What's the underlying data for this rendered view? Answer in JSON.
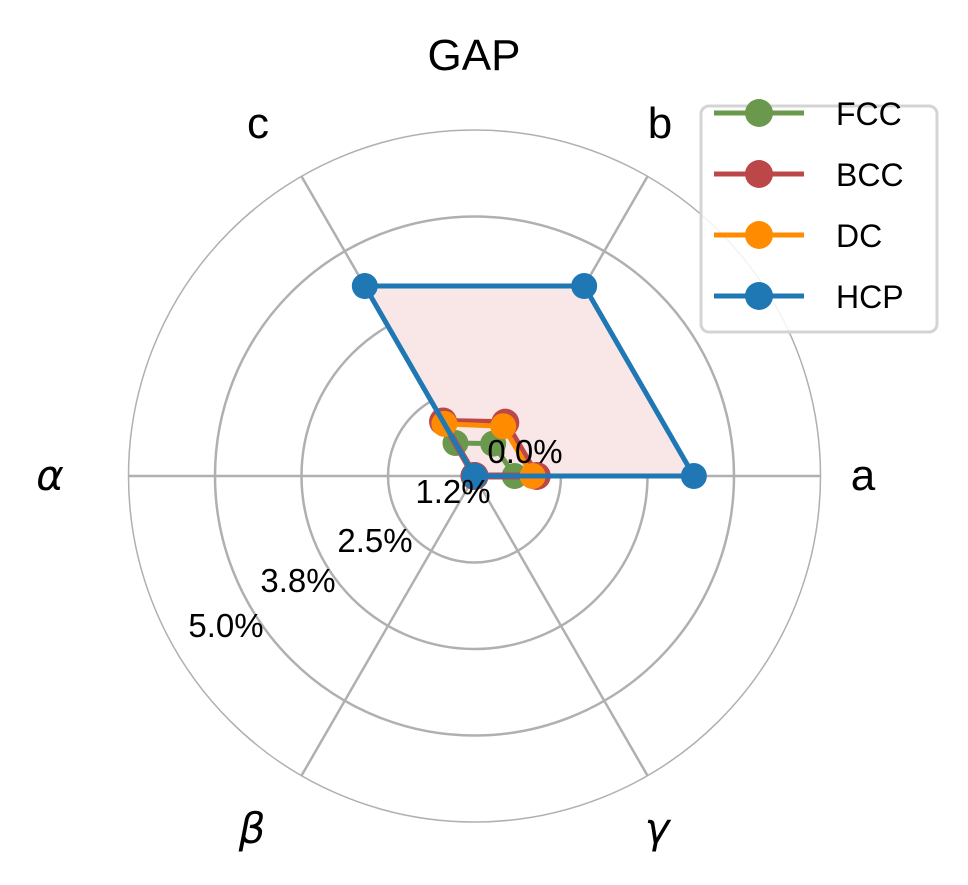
{
  "chart_data": {
    "type": "radar",
    "title": "GAP",
    "axes": [
      "a",
      "b",
      "c",
      "α",
      "β",
      "γ"
    ],
    "axis_angles_deg": [
      0,
      60,
      120,
      180,
      240,
      300
    ],
    "radial_ticks": [
      0.0,
      1.25,
      2.5,
      3.75,
      5.0
    ],
    "radial_tick_labels": [
      "0.0%",
      "1.2%",
      "2.5%",
      "3.8%",
      "5.0%"
    ],
    "rlim": [
      0,
      5.0
    ],
    "unit": "%",
    "grid": true,
    "legend_position": "upper right (outside)",
    "series": [
      {
        "name": "FCC",
        "color": "#6a994e",
        "values": [
          0.58,
          0.54,
          0.55,
          0.0,
          0.0,
          0.0
        ]
      },
      {
        "name": "BCC",
        "color": "#bc4749",
        "values": [
          0.9,
          0.89,
          0.91,
          0.0,
          0.0,
          0.0
        ]
      },
      {
        "name": "DC",
        "color": "#ff8c00",
        "values": [
          0.84,
          0.83,
          0.87,
          0.0,
          0.0,
          0.0
        ]
      },
      {
        "name": "HCP",
        "color": "#1f77b4",
        "values": [
          3.17,
          3.17,
          3.17,
          0.0,
          0.0,
          0.0
        ]
      }
    ],
    "fill_color": "#f9e7e7"
  },
  "legend": {
    "items": [
      {
        "label": "FCC",
        "color": "#6a994e"
      },
      {
        "label": "BCC",
        "color": "#bc4749"
      },
      {
        "label": "DC",
        "color": "#ff8c00"
      },
      {
        "label": "HCP",
        "color": "#1f77b4"
      }
    ]
  }
}
